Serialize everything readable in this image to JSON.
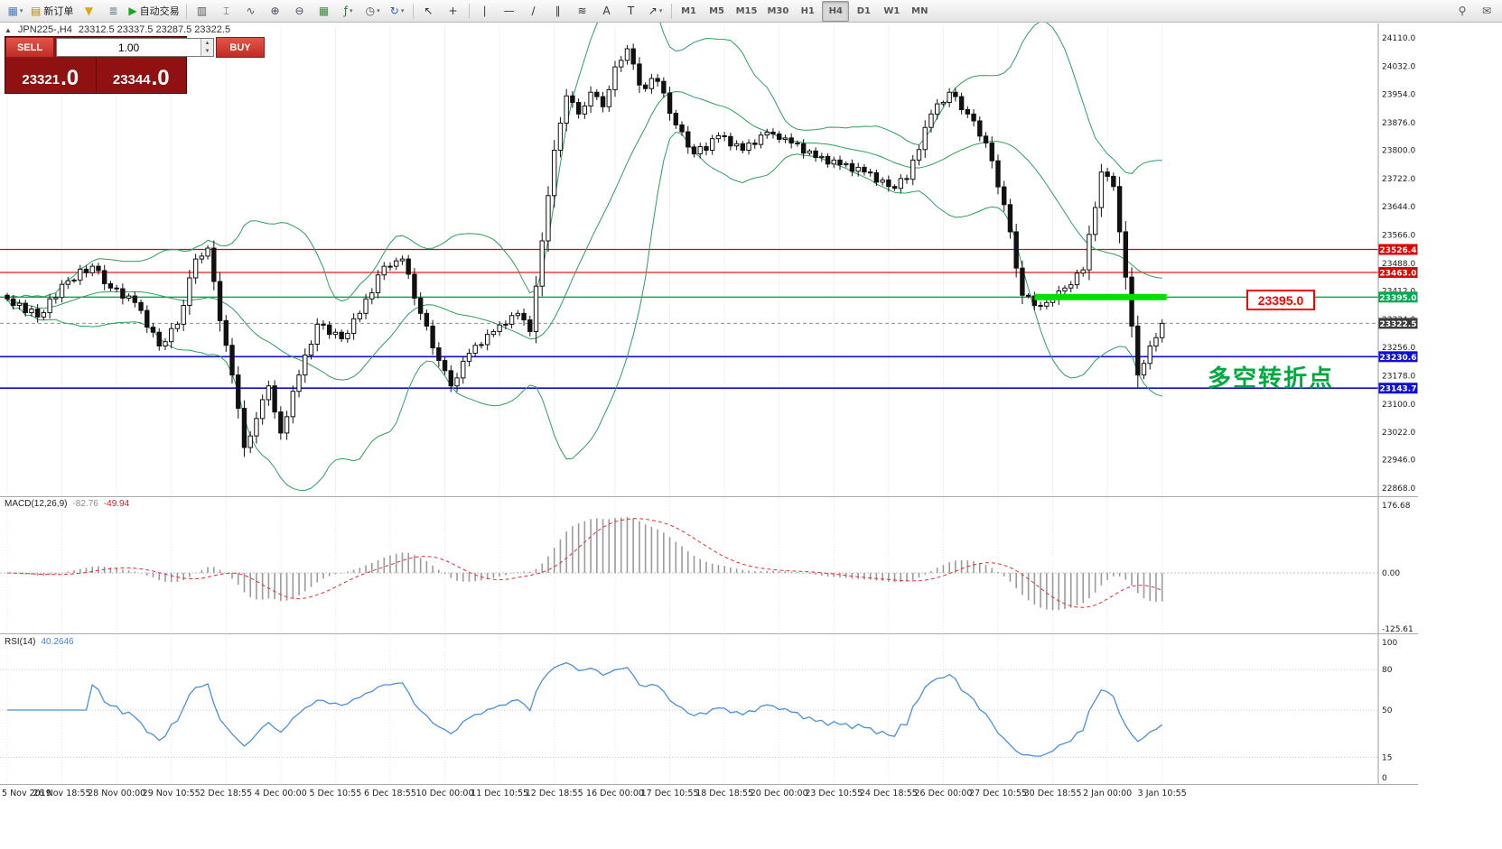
{
  "toolbar": {
    "dropdown_glyph": "▾",
    "items": [
      {
        "name": "chart-windows-icon",
        "glyph": "▦",
        "color": "#4a7ebb",
        "dropdown": true
      },
      {
        "name": "new-order-button",
        "glyph": "▤",
        "color": "#b8860b",
        "label": "新订单"
      },
      {
        "name": "market-watch-icon",
        "glyph": "▼",
        "color": "#e0a800"
      },
      {
        "name": "depth-of-market-icon",
        "glyph": "≣",
        "color": "#5f7090"
      },
      {
        "name": "autotrading-button",
        "glyph": "▶",
        "color": "#18a818",
        "label": "自动交易"
      },
      {
        "type": "separator"
      },
      {
        "name": "bar-chart-icon",
        "glyph": "▥",
        "color": "#555"
      },
      {
        "name": "candlestick-chart-icon",
        "glyph": "⌶",
        "color": "#555"
      },
      {
        "name": "line-chart-icon",
        "glyph": "∿",
        "color": "#555"
      },
      {
        "name": "zoom-in-icon",
        "glyph": "⊕",
        "color": "#446"
      },
      {
        "name": "zoom-out-icon",
        "glyph": "⊖",
        "color": "#446"
      },
      {
        "name": "tile-windows-icon",
        "glyph": "▦",
        "color": "#3a8a3a"
      },
      {
        "name": "indicators-icon",
        "glyph": "ƒ",
        "color": "#2a7a2a",
        "dropdown": true
      },
      {
        "name": "periods-icon",
        "glyph": "◷",
        "color": "#555",
        "dropdown": true
      },
      {
        "name": "templates-icon",
        "glyph": "↻",
        "color": "#2a62b8",
        "dropdown": true
      },
      {
        "type": "separator"
      },
      {
        "name": "cursor-icon",
        "glyph": "↖",
        "color": "#333"
      },
      {
        "name": "crosshair-icon",
        "glyph": "+",
        "color": "#333"
      },
      {
        "type": "separator"
      },
      {
        "name": "vertical-line-icon",
        "glyph": "∣",
        "color": "#333"
      },
      {
        "name": "horizontal-line-icon",
        "glyph": "—",
        "color": "#333"
      },
      {
        "name": "trendline-icon",
        "glyph": "∕",
        "color": "#333"
      },
      {
        "name": "equidistant-channel-icon",
        "glyph": "∥",
        "color": "#333"
      },
      {
        "name": "fibonacci-icon",
        "glyph": "≋",
        "color": "#333"
      },
      {
        "name": "text-icon",
        "glyph": "A",
        "color": "#333"
      },
      {
        "name": "text-label-icon",
        "glyph": "T",
        "color": "#333"
      },
      {
        "name": "arrows-icon",
        "glyph": "↗",
        "color": "#333",
        "dropdown": true
      },
      {
        "type": "separator"
      }
    ],
    "timeframes": [
      "M1",
      "M5",
      "M15",
      "M30",
      "H1",
      "H4",
      "D1",
      "W1",
      "MN"
    ],
    "active_timeframe": "H4",
    "right_items": [
      {
        "name": "search-icon",
        "glyph": "⚲",
        "color": "#555"
      },
      {
        "name": "mail-icon",
        "glyph": "✉",
        "color": "#555"
      }
    ]
  },
  "chart": {
    "header": {
      "icon": "▲",
      "symbol": "JPN225-,H4",
      "ohlc": "23312.5 23337.5 23287.5 23322.5"
    }
  },
  "trade": {
    "sell_label": "SELL",
    "buy_label": "BUY",
    "volume": "1.00",
    "sell_price": "23321.0",
    "buy_price": "23344.0",
    "spinner_up": "▲",
    "spinner_down": "▼"
  },
  "indicators": {
    "macd": {
      "name": "MACD(12,26,9)",
      "value_main": "-82.76",
      "value_signal": "-49.94"
    },
    "rsi": {
      "name": "RSI(14)",
      "value": "40.2646"
    }
  },
  "chart_data": {
    "type": "candlestick",
    "symbol": "JPN225-",
    "timeframe": "H4",
    "last_ohlc": {
      "open": 23312.5,
      "high": 23337.5,
      "low": 23287.5,
      "close": 23322.5
    },
    "closes": [
      23390,
      23372,
      23378,
      23352,
      23362,
      23340,
      23352,
      23390,
      23394,
      23430,
      23440,
      23442,
      23472,
      23462,
      23480,
      23468,
      23432,
      23420,
      23418,
      23392,
      23398,
      23380,
      23358,
      23312,
      23298,
      23260,
      23272,
      23308,
      23320,
      23372,
      23448,
      23500,
      23508,
      23530,
      23438,
      23330,
      23262,
      23180,
      23088,
      22980,
      23012,
      23060,
      23112,
      23150,
      23078,
      23020,
      23065,
      23135,
      23180,
      23235,
      23265,
      23320,
      23318,
      23292,
      23298,
      23280,
      23295,
      23335,
      23350,
      23390,
      23407,
      23456,
      23480,
      23480,
      23495,
      23500,
      23458,
      23392,
      23350,
      23315,
      23255,
      23220,
      23192,
      23150,
      23172,
      23218,
      23240,
      23262,
      23264,
      23292,
      23300,
      23318,
      23320,
      23344,
      23350,
      23332,
      23300,
      23425,
      23550,
      23675,
      23800,
      23875,
      23950,
      23932,
      23900,
      23922,
      23960,
      23948,
      23920,
      23967,
      24030,
      24048,
      24080,
      24038,
      23980,
      23970,
      23998,
      23990,
      23958,
      23902,
      23870,
      23851,
      23809,
      23790,
      23810,
      23800,
      23832,
      23840,
      23838,
      23812,
      23818,
      23800,
      23820,
      23816,
      23842,
      23850,
      23845,
      23830,
      23834,
      23820,
      23818,
      23792,
      23798,
      23780,
      23783,
      23762,
      23773,
      23760,
      23763,
      23742,
      23753,
      23740,
      23738,
      23712,
      23718,
      23700,
      23695,
      23722,
      23720,
      23773,
      23802,
      23863,
      23900,
      23928,
      23932,
      23960,
      23948,
      23912,
      23900,
      23881,
      23839,
      23820,
      23771,
      23699,
      23650,
      23575,
      23475,
      23400,
      23398,
      23372,
      23370,
      23380,
      23390,
      23412,
      23420,
      23429,
      23461,
      23470,
      23568,
      23642,
      23740,
      23728,
      23700,
      23575,
      23450,
      23315,
      23180,
      23212,
      23260,
      23283,
      23322.5
    ],
    "price_axis": {
      "labels": [
        "24110.0",
        "24032.0",
        "23954.0",
        "23876.0",
        "23800.0",
        "23722.0",
        "23644.0",
        "23566.0",
        "23488.0",
        "23412.0",
        "23334.0",
        "23256.0",
        "23178.0",
        "23100.0",
        "23022.0",
        "22946.0",
        "22868.0"
      ],
      "top_value": 24110.0,
      "bottom_value": 22868.0
    },
    "time_axis": {
      "ticks": [
        {
          "i": 0,
          "label": "5 Nov 2019"
        },
        {
          "i": 9,
          "label": "26 Nov 18:55"
        },
        {
          "i": 18,
          "label": "28 Nov 00:00"
        },
        {
          "i": 27,
          "label": "29 Nov 10:55"
        },
        {
          "i": 36,
          "label": "2 Dec 18:55"
        },
        {
          "i": 45,
          "label": "4 Dec 00:00"
        },
        {
          "i": 54,
          "label": "5 Dec 10:55"
        },
        {
          "i": 63,
          "label": "6 Dec 18:55"
        },
        {
          "i": 72,
          "label": "10 Dec 00:00"
        },
        {
          "i": 81,
          "label": "11 Dec 10:55"
        },
        {
          "i": 90,
          "label": "12 Dec 18:55"
        },
        {
          "i": 100,
          "label": "16 Dec 00:00"
        },
        {
          "i": 109,
          "label": "17 Dec 10:55"
        },
        {
          "i": 118,
          "label": "18 Dec 18:55"
        },
        {
          "i": 127,
          "label": "20 Dec 00:00"
        },
        {
          "i": 136,
          "label": "23 Dec 10:55"
        },
        {
          "i": 145,
          "label": "24 Dec 18:55"
        },
        {
          "i": 154,
          "label": "26 Dec 00:00"
        },
        {
          "i": 163,
          "label": "27 Dec 10:55"
        },
        {
          "i": 172,
          "label": "30 Dec 18:55"
        },
        {
          "i": 181,
          "label": "2 Jan 00:00"
        },
        {
          "i": 190,
          "label": "3 Jan 10:55"
        }
      ]
    },
    "overlays": {
      "bollinger_bands": {
        "period": 20,
        "deviation": 2,
        "color": "#2aa05a"
      }
    },
    "levels": [
      {
        "value": 23526.4,
        "label": "23526.4",
        "color": "#e00000",
        "badge_bg": "#e00000",
        "width": 1.2,
        "style": "solid"
      },
      {
        "value": 23463.0,
        "label": "23463.0",
        "color": "#e00000",
        "badge_bg": "#e00000",
        "width": 1.2,
        "style": "solid"
      },
      {
        "value": 23395.0,
        "label": "23395.0",
        "color": "#00a84f",
        "badge_bg": "#00a84f",
        "width": 1.4,
        "style": "solid"
      },
      {
        "value": 23322.5,
        "label": "23322.5",
        "color": "#909090",
        "badge_bg": "#3a3a3a",
        "width": 1,
        "style": "dash"
      },
      {
        "value": 23230.6,
        "label": "23230.6",
        "color": "#0f0fd0",
        "badge_bg": "#0f0fd0",
        "width": 1.6,
        "style": "solid"
      },
      {
        "value": 23143.7,
        "label": "23143.7",
        "color": "#0f0fd0",
        "badge_bg": "#0f0fd0",
        "width": 1.6,
        "style": "solid"
      }
    ],
    "highlight": {
      "value": 23395.0,
      "from_index": 169,
      "to_index": 190,
      "color": "#00e000",
      "thickness": 7
    },
    "annotations": [
      {
        "type": "price-label",
        "text": "23395.0",
        "color": "#ff0000"
      },
      {
        "type": "text",
        "text": "多空转折点",
        "color": "#00a840"
      }
    ],
    "indicator_panes": [
      {
        "type": "macd",
        "name": "MACD(12,26,9)",
        "params": [
          12,
          26,
          9
        ],
        "value_main": -82.76,
        "value_signal": -49.94,
        "scale_labels": [
          "176.68",
          "0.00",
          "-125.61"
        ],
        "histogram_color": "#9b9b9b",
        "signal_color": "#e03030"
      },
      {
        "type": "rsi",
        "name": "RSI(14)",
        "period": 14,
        "value": 40.2646,
        "scale_labels": [
          "100",
          "80",
          "50",
          "15",
          "0"
        ],
        "line_color": "#4a90d9",
        "levels": [
          80,
          50,
          15
        ]
      }
    ]
  }
}
